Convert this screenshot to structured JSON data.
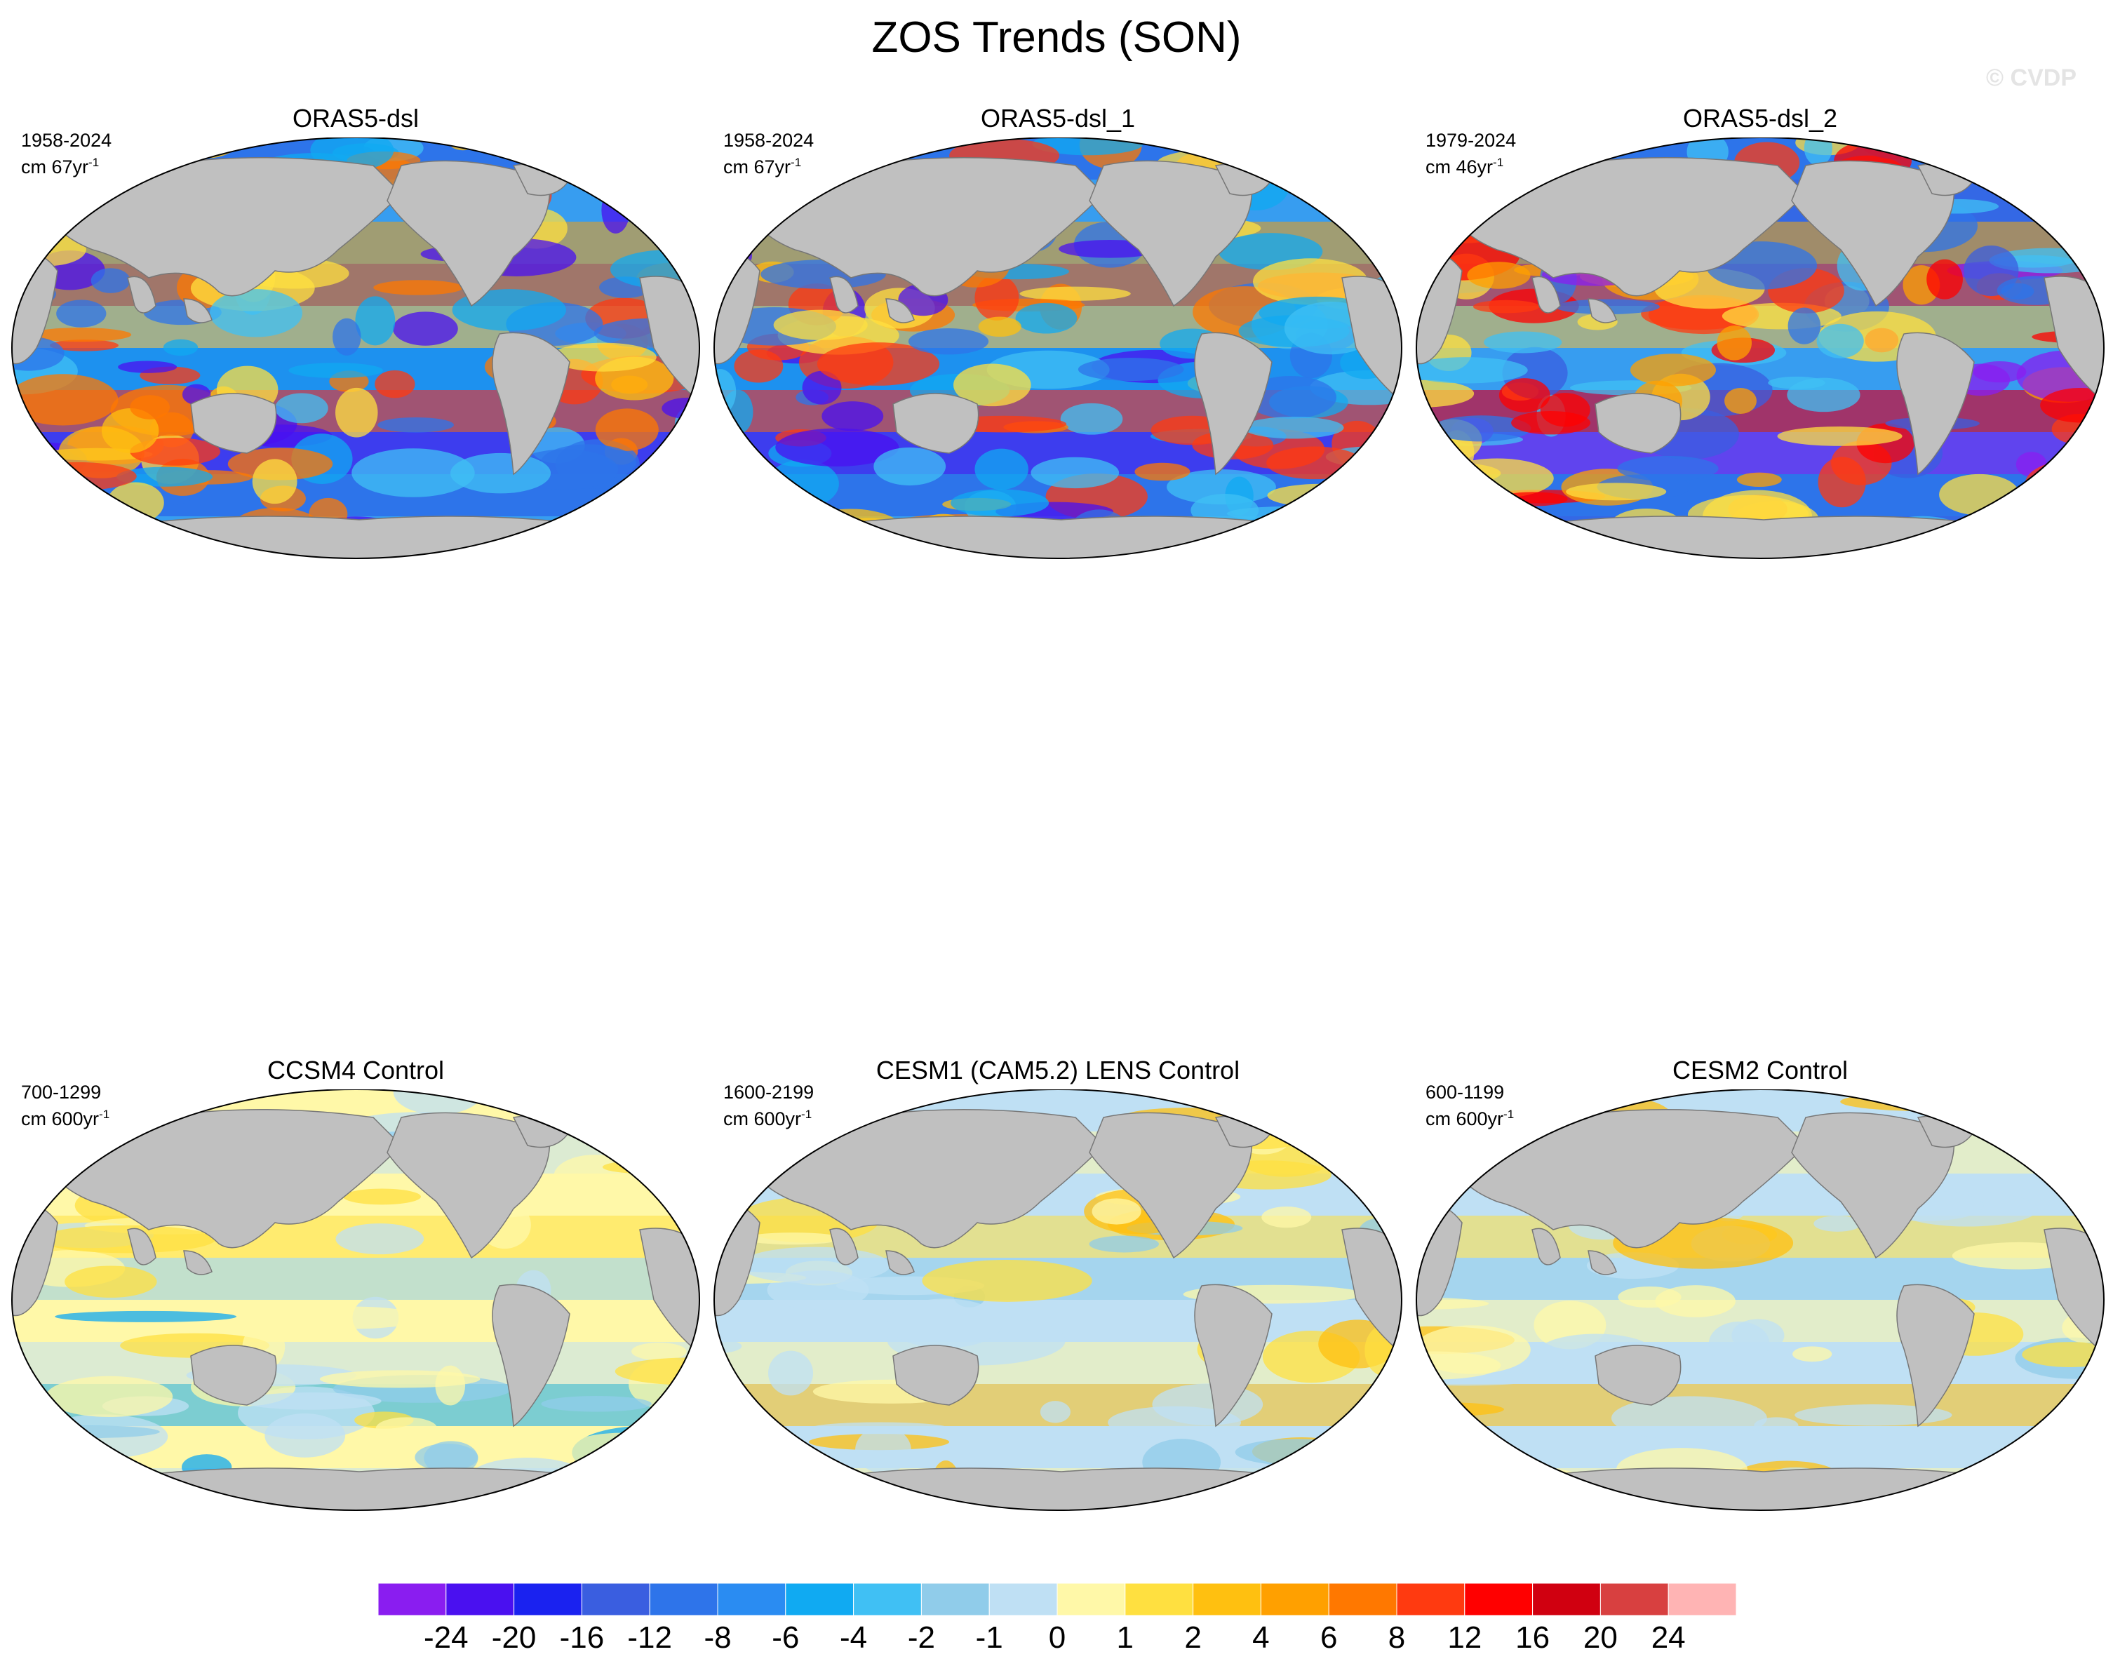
{
  "title": "ZOS Trends (SON)",
  "watermark": "© CVDP",
  "panels": [
    {
      "name": "ORAS5-dsl",
      "period": "1958-2024",
      "units_prefix": "cm 67yr",
      "units_exp": "-1",
      "style": "obs"
    },
    {
      "name": "ORAS5-dsl_1",
      "period": "1958-2024",
      "units_prefix": "cm 67yr",
      "units_exp": "-1",
      "style": "obs"
    },
    {
      "name": "ORAS5-dsl_2",
      "period": "1979-2024",
      "units_prefix": "cm 46yr",
      "units_exp": "-1",
      "style": "obs2"
    },
    {
      "name": "CCSM4 Control",
      "period": "700-1299",
      "units_prefix": "cm 600yr",
      "units_exp": "-1",
      "style": "ctl"
    },
    {
      "name": "CESM1 (CAM5.2) LENS Control",
      "period": "1600-2199",
      "units_prefix": "cm 600yr",
      "units_exp": "-1",
      "style": "ctl2"
    },
    {
      "name": "CESM2 Control",
      "period": "600-1199",
      "units_prefix": "cm 600yr",
      "units_exp": "-1",
      "style": "ctl3"
    }
  ],
  "colorbar": {
    "labels": [
      "-24",
      "-20",
      "-16",
      "-12",
      "-8",
      "-6",
      "-4",
      "-2",
      "-1",
      "0",
      "1",
      "2",
      "4",
      "6",
      "8",
      "12",
      "16",
      "20",
      "24"
    ],
    "colors": [
      "#8a1df0",
      "#4a10f0",
      "#1a22f0",
      "#3a5ee0",
      "#2e74ea",
      "#2a8cf2",
      "#10aaf2",
      "#40c0f4",
      "#90ccea",
      "#bfe0f4",
      "#fff8a8",
      "#ffe040",
      "#ffc010",
      "#ffa000",
      "#ff7800",
      "#ff3a10",
      "#ff0000",
      "#d00010",
      "#d84040",
      "#ffb4b4"
    ]
  },
  "chart_data": {
    "type": "map",
    "title": "ZOS Trends (SON)",
    "variable": "ZOS",
    "season": "SON",
    "panels": [
      "ORAS5-dsl",
      "ORAS5-dsl_1",
      "ORAS5-dsl_2",
      "CCSM4 Control",
      "CESM1 (CAM5.2) LENS Control",
      "CESM2 Control"
    ],
    "colorbar_levels": [
      -24,
      -20,
      -16,
      -12,
      -8,
      -6,
      -4,
      -2,
      -1,
      0,
      1,
      2,
      4,
      6,
      8,
      12,
      16,
      20,
      24
    ]
  }
}
